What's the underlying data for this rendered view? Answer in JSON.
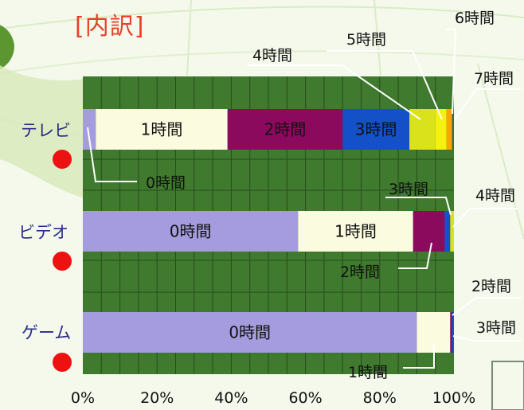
{
  "title": "[内訳]",
  "chart_data": {
    "type": "bar",
    "orientation": "horizontal",
    "stacked": true,
    "categories": [
      "テレビ",
      "ビデオ",
      "ゲーム"
    ],
    "xlim": [
      0,
      100
    ],
    "x_ticks": [
      "0%",
      "20%",
      "40%",
      "60%",
      "80%",
      "100%"
    ],
    "grid": true,
    "colors": {
      "0時間": "#a49cde",
      "1時間": "#fbfbe0",
      "2時間": "#8c0a5e",
      "3時間": "#1450c8",
      "4時間": "#d9e21a",
      "5時間": "#f5f010",
      "6時間": "#f6a800",
      "7時間": "#3c6e3c",
      "plot_background": "#3f7a2e",
      "gridline": "#264e1c"
    },
    "series": [
      {
        "name": "0時間",
        "values": [
          3.5,
          58.0,
          90.0
        ]
      },
      {
        "name": "1時間",
        "values": [
          35.5,
          31.0,
          9.0
        ]
      },
      {
        "name": "2時間",
        "values": [
          31.0,
          8.5,
          0.5
        ]
      },
      {
        "name": "3時間",
        "values": [
          18.0,
          1.5,
          0.5
        ]
      },
      {
        "name": "4時間",
        "values": [
          7.0,
          1.0,
          0
        ]
      },
      {
        "name": "5時間",
        "values": [
          3.0,
          0,
          0
        ]
      },
      {
        "name": "6時間",
        "values": [
          1.5,
          0,
          0
        ]
      },
      {
        "name": "7時間",
        "values": [
          0.5,
          0,
          0
        ]
      }
    ]
  }
}
